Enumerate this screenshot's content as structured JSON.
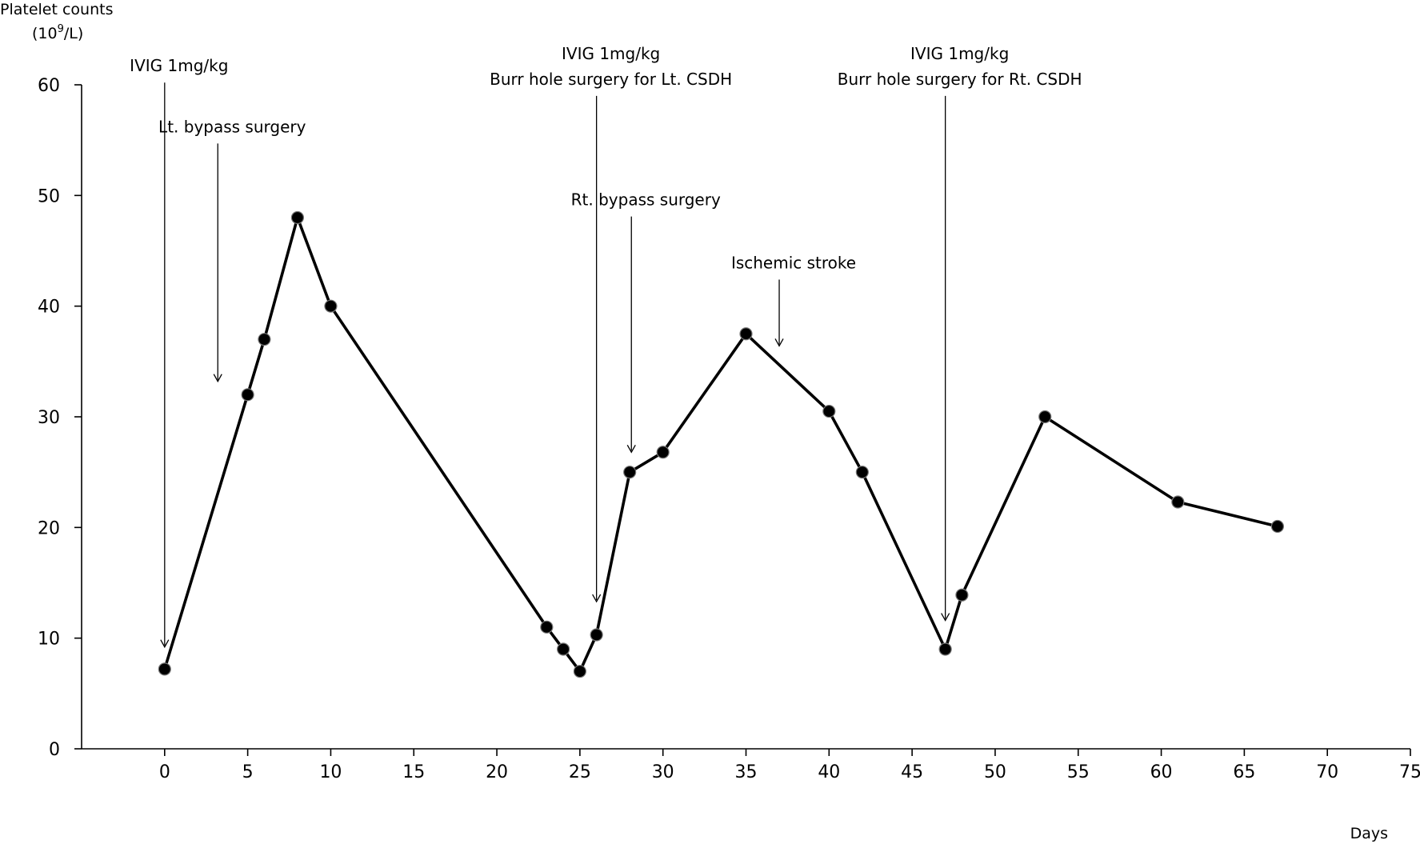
{
  "chart_data": {
    "type": "line",
    "ylabel_line1": "Platelet counts",
    "ylabel_line2_base": "(10",
    "ylabel_line2_sup": "9",
    "ylabel_line2_tail": "/L)",
    "xlabel": "Days",
    "xlim": [
      -5,
      75
    ],
    "ylim": [
      0,
      60
    ],
    "xticks": [
      0,
      5,
      10,
      15,
      20,
      25,
      30,
      35,
      40,
      45,
      50,
      55,
      60,
      65,
      70,
      75
    ],
    "yticks": [
      0,
      10,
      20,
      30,
      40,
      50,
      60
    ],
    "grid": false,
    "series": [
      {
        "x": [
          0,
          5,
          6,
          8,
          10,
          23,
          24,
          25,
          26,
          28,
          30,
          35,
          40,
          42,
          47,
          48,
          53,
          61,
          67
        ],
        "y": [
          7.2,
          32,
          37,
          48,
          40,
          11,
          9,
          7,
          10.3,
          25,
          26.8,
          37.5,
          30.5,
          25,
          9,
          13.9,
          30,
          22.3,
          20.1
        ],
        "color": "#000000"
      }
    ],
    "annotations": [
      {
        "lines": [
          "IVIG 1mg/kg"
        ],
        "x": 0,
        "y_top": 60.2,
        "y_tip": 9.2
      },
      {
        "lines": [
          "Lt. bypass surgery"
        ],
        "x": 3.2,
        "y_top": 54.7,
        "y_tip": 33.2
      },
      {
        "lines": [
          "IVIG 1mg/kg",
          "Burr hole surgery for Lt. CSDH"
        ],
        "x": 26,
        "y_top": 59,
        "y_tip": 13.3
      },
      {
        "lines": [
          "Rt. bypass surgery"
        ],
        "x": 28.1,
        "y_top": 48.1,
        "y_tip": 26.8
      },
      {
        "lines": [
          "Ischemic stroke"
        ],
        "x": 37,
        "y_top": 42.4,
        "y_tip": 36.4
      },
      {
        "lines": [
          "IVIG 1mg/kg",
          "Burr hole surgery for Rt. CSDH"
        ],
        "x": 47,
        "y_top": 59,
        "y_tip": 11.6
      }
    ]
  }
}
